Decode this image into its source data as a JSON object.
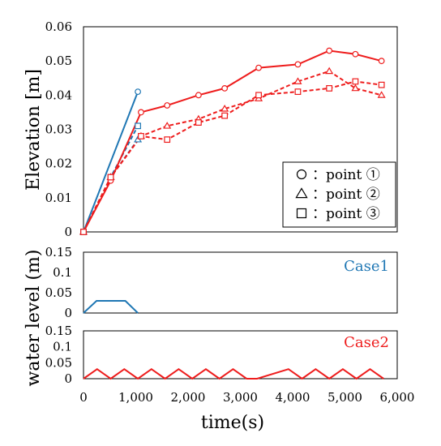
{
  "chart_data": [
    {
      "type": "line",
      "ylabel": "Elevation [m]",
      "ylim": [
        0,
        0.06
      ],
      "yticks": [
        "0",
        "0.01",
        "0.02",
        "0.03",
        "0.04",
        "0.05",
        "0.06"
      ],
      "xlim": [
        0,
        6000
      ],
      "legend": {
        "placement": "bottom-right",
        "entries": [
          {
            "marker": "circle",
            "label": "：point ①"
          },
          {
            "marker": "triangle",
            "label": "：point ②"
          },
          {
            "marker": "square",
            "label": "：point ③"
          }
        ]
      },
      "series": [
        {
          "case": "Case1",
          "marker": "circle",
          "color": "#1f77b4",
          "dash": "solid",
          "x": [
            0,
            1040
          ],
          "y": [
            0,
            0.041
          ]
        },
        {
          "case": "Case1",
          "marker": "triangle",
          "color": "#1f77b4",
          "dash": "dashed",
          "x": [
            0,
            520,
            1040
          ],
          "y": [
            0,
            0.016,
            0.027
          ]
        },
        {
          "case": "Case1",
          "marker": "square",
          "color": "#1f77b4",
          "dash": "dashed",
          "x": [
            0,
            520,
            1040
          ],
          "y": [
            0,
            0.016,
            0.031
          ]
        },
        {
          "case": "Case2",
          "marker": "circle",
          "color": "#ee1c1c",
          "dash": "solid",
          "x": [
            0,
            520,
            1100,
            1600,
            2200,
            2700,
            3350,
            4100,
            4700,
            5200,
            5700
          ],
          "y": [
            0,
            0.015,
            0.035,
            0.037,
            0.04,
            0.042,
            0.048,
            0.049,
            0.053,
            0.052,
            0.05
          ]
        },
        {
          "case": "Case2",
          "marker": "triangle",
          "color": "#ee1c1c",
          "dash": "dashed",
          "x": [
            0,
            520,
            1100,
            1600,
            2200,
            2700,
            3350,
            4100,
            4700,
            5200,
            5700
          ],
          "y": [
            0,
            0.016,
            0.028,
            0.031,
            0.033,
            0.036,
            0.039,
            0.044,
            0.047,
            0.042,
            0.04
          ]
        },
        {
          "case": "Case2",
          "marker": "square",
          "color": "#ee1c1c",
          "dash": "dashed",
          "x": [
            0,
            520,
            1100,
            1600,
            2200,
            2700,
            3350,
            4100,
            4700,
            5200,
            5700
          ],
          "y": [
            0,
            0.016,
            0.028,
            0.027,
            0.032,
            0.034,
            0.04,
            0.041,
            0.042,
            0.044,
            0.043
          ]
        }
      ]
    },
    {
      "type": "line",
      "label": "Case1",
      "color": "#1f77b4",
      "ylim": [
        0,
        0.15
      ],
      "yticks": [
        "0",
        "0.05",
        "0.1",
        "0.15"
      ],
      "xlim": [
        0,
        6000
      ],
      "x": [
        0,
        250,
        800,
        1040
      ],
      "y": [
        0,
        0.03,
        0.03,
        0
      ]
    },
    {
      "type": "line",
      "label": "Case2",
      "color": "#ee1c1c",
      "ylim": [
        0,
        0.15
      ],
      "yticks": [
        "0",
        "0.05",
        "0.1",
        "0.15"
      ],
      "xlim": [
        0,
        6000
      ],
      "x": [
        0,
        260,
        520,
        780,
        1040,
        1300,
        1560,
        1820,
        2080,
        2340,
        2600,
        2860,
        3120,
        3320,
        3920,
        4180,
        4440,
        4700,
        4960,
        5220,
        5480,
        5740
      ],
      "y": [
        0,
        0.03,
        0,
        0.03,
        0,
        0.03,
        0,
        0.03,
        0,
        0.03,
        0,
        0.03,
        0,
        0,
        0.03,
        0,
        0.03,
        0,
        0.03,
        0,
        0.03,
        0
      ]
    }
  ],
  "shared": {
    "ylabel_lower": "water level (m)",
    "xlabel": "time(s)",
    "xticks": [
      "0",
      "1,000",
      "2,000",
      "3,000",
      "4,000",
      "5,000",
      "6,000"
    ]
  }
}
